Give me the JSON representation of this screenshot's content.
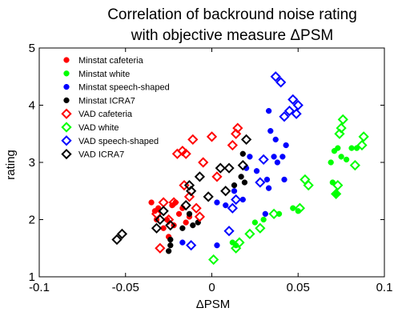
{
  "chart_data": {
    "type": "scatter",
    "title_line1": "Correlation of backround noise rating",
    "title_line2": "with objective measure ΔPSM",
    "xlabel": "ΔPSM",
    "ylabel": "rating",
    "xlim": [
      -0.1,
      0.1
    ],
    "ylim": [
      1,
      5
    ],
    "xticks": [
      "-0.1",
      "-0.05",
      "0",
      "0.05",
      "0.1"
    ],
    "yticks": [
      "1",
      "2",
      "3",
      "4",
      "5"
    ],
    "legend_location": "top-left",
    "series": [
      {
        "name": "Minstat cafeteria",
        "marker": "dot",
        "color": "#ff0000",
        "points": [
          [
            -0.035,
            2.3
          ],
          [
            -0.033,
            2.15
          ],
          [
            -0.032,
            2.0
          ],
          [
            -0.031,
            2.2
          ],
          [
            -0.028,
            1.85
          ],
          [
            -0.026,
            2.0
          ],
          [
            -0.025,
            1.7
          ],
          [
            -0.023,
            2.25
          ],
          [
            -0.022,
            1.9
          ],
          [
            -0.021,
            2.3
          ],
          [
            -0.019,
            2.1
          ],
          [
            -0.017,
            2.2
          ],
          [
            -0.015,
            1.95
          ],
          [
            -0.013,
            2.05
          ]
        ]
      },
      {
        "name": "Minstat white",
        "marker": "dot",
        "color": "#00ff00",
        "points": [
          [
            0.012,
            1.6
          ],
          [
            0.014,
            1.55
          ],
          [
            0.025,
            1.95
          ],
          [
            0.03,
            2.0
          ],
          [
            0.039,
            2.1
          ],
          [
            0.047,
            2.2
          ],
          [
            0.05,
            2.15
          ],
          [
            0.069,
            3.0
          ],
          [
            0.07,
            2.65
          ],
          [
            0.071,
            3.2
          ],
          [
            0.072,
            2.45
          ],
          [
            0.073,
            3.25
          ],
          [
            0.075,
            3.1
          ],
          [
            0.078,
            3.05
          ],
          [
            0.081,
            3.25
          ],
          [
            0.084,
            3.25
          ]
        ]
      },
      {
        "name": "Minstat speech-shaped",
        "marker": "dot",
        "color": "#0000ff",
        "points": [
          [
            -0.017,
            1.6
          ],
          [
            0.003,
            1.55
          ],
          [
            0.003,
            2.3
          ],
          [
            0.008,
            2.25
          ],
          [
            0.013,
            2.5
          ],
          [
            0.018,
            2.35
          ],
          [
            0.02,
            2.9
          ],
          [
            0.022,
            3.1
          ],
          [
            0.026,
            2.85
          ],
          [
            0.031,
            2.1
          ],
          [
            0.032,
            2.7
          ],
          [
            0.033,
            2.55
          ],
          [
            0.033,
            3.9
          ],
          [
            0.034,
            3.55
          ],
          [
            0.036,
            3.1
          ],
          [
            0.037,
            3.4
          ],
          [
            0.038,
            3.0
          ],
          [
            0.041,
            3.1
          ],
          [
            0.042,
            2.7
          ],
          [
            0.043,
            3.3
          ]
        ]
      },
      {
        "name": "Minstat ICRA7",
        "marker": "dot",
        "color": "#000000",
        "points": [
          [
            -0.025,
            1.45
          ],
          [
            -0.024,
            1.55
          ],
          [
            -0.024,
            1.65
          ],
          [
            -0.017,
            1.85
          ],
          [
            -0.013,
            2.1
          ],
          [
            -0.011,
            1.9
          ],
          [
            -0.008,
            1.95
          ],
          [
            0.013,
            2.6
          ],
          [
            0.017,
            2.75
          ],
          [
            0.018,
            3.15
          ],
          [
            0.019,
            2.65
          ]
        ]
      },
      {
        "name": "VAD cafeteria",
        "marker": "diamond",
        "color": "#ff0000",
        "points": [
          [
            -0.03,
            1.5
          ],
          [
            -0.032,
            2.1
          ],
          [
            -0.028,
            2.3
          ],
          [
            -0.025,
            2.0
          ],
          [
            -0.022,
            2.3
          ],
          [
            -0.02,
            3.15
          ],
          [
            -0.017,
            3.2
          ],
          [
            -0.016,
            2.6
          ],
          [
            -0.015,
            3.15
          ],
          [
            -0.013,
            2.4
          ],
          [
            -0.011,
            3.4
          ],
          [
            -0.009,
            2.2
          ],
          [
            -0.007,
            2.05
          ],
          [
            -0.005,
            3.0
          ],
          [
            0.0,
            3.45
          ],
          [
            0.003,
            2.75
          ],
          [
            0.012,
            3.3
          ],
          [
            0.014,
            3.5
          ],
          [
            0.015,
            3.6
          ]
        ]
      },
      {
        "name": "VAD white",
        "marker": "diamond",
        "color": "#00ff00",
        "points": [
          [
            0.001,
            1.3
          ],
          [
            0.014,
            1.5
          ],
          [
            0.016,
            1.6
          ],
          [
            0.022,
            1.75
          ],
          [
            0.028,
            1.85
          ],
          [
            0.036,
            2.1
          ],
          [
            0.051,
            2.2
          ],
          [
            0.054,
            2.7
          ],
          [
            0.056,
            2.6
          ],
          [
            0.072,
            2.45
          ],
          [
            0.073,
            2.6
          ],
          [
            0.074,
            3.5
          ],
          [
            0.075,
            3.6
          ],
          [
            0.076,
            3.75
          ],
          [
            0.083,
            2.95
          ],
          [
            0.087,
            3.3
          ],
          [
            0.088,
            3.45
          ]
        ]
      },
      {
        "name": "VAD speech-shaped",
        "marker": "diamond",
        "color": "#0000ff",
        "points": [
          [
            -0.012,
            1.55
          ],
          [
            0.01,
            1.8
          ],
          [
            0.012,
            2.2
          ],
          [
            0.014,
            2.35
          ],
          [
            0.028,
            2.65
          ],
          [
            0.03,
            3.05
          ],
          [
            0.037,
            4.5
          ],
          [
            0.04,
            4.4
          ],
          [
            0.042,
            3.8
          ],
          [
            0.045,
            3.9
          ],
          [
            0.047,
            4.1
          ],
          [
            0.049,
            3.85
          ],
          [
            0.05,
            4.0
          ]
        ]
      },
      {
        "name": "VAD ICRA7",
        "marker": "diamond",
        "color": "#000000",
        "points": [
          [
            -0.055,
            1.65
          ],
          [
            -0.052,
            1.75
          ],
          [
            -0.032,
            1.85
          ],
          [
            -0.03,
            2.0
          ],
          [
            -0.028,
            2.15
          ],
          [
            -0.024,
            1.9
          ],
          [
            -0.015,
            2.25
          ],
          [
            -0.013,
            2.6
          ],
          [
            -0.012,
            2.5
          ],
          [
            -0.007,
            2.75
          ],
          [
            -0.002,
            2.4
          ],
          [
            0.005,
            2.9
          ],
          [
            0.008,
            2.5
          ],
          [
            0.01,
            2.9
          ],
          [
            0.018,
            2.95
          ],
          [
            0.02,
            3.4
          ]
        ]
      }
    ]
  }
}
